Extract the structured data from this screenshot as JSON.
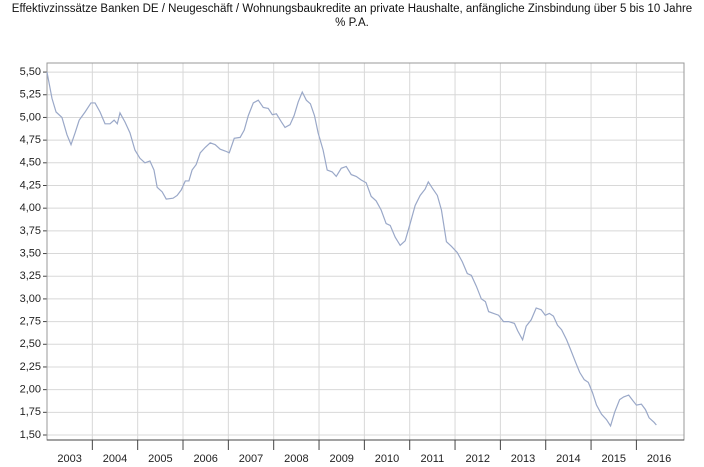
{
  "chart_data": {
    "type": "line",
    "title": "Effektivzinssätze Banken DE / Neugeschäft / Wohnungsbaukredite an private Haushalte, anfängliche Zinsbindung über 5 bis 10 Jahre",
    "subtitle": "% P.A.",
    "x": [
      2003.0,
      2003.11,
      2003.2,
      2003.33,
      2003.44,
      2003.53,
      2003.62,
      2003.71,
      2003.84,
      2003.97,
      2004.06,
      2004.17,
      2004.28,
      2004.39,
      2004.48,
      2004.55,
      2004.61,
      2004.72,
      2004.83,
      2004.94,
      2005.05,
      2005.16,
      2005.27,
      2005.36,
      2005.43,
      2005.54,
      2005.63,
      2005.78,
      2005.87,
      2005.96,
      2006.05,
      2006.13,
      2006.2,
      2006.29,
      2006.38,
      2006.49,
      2006.6,
      2006.71,
      2006.82,
      2006.93,
      2007.02,
      2007.13,
      2007.26,
      2007.35,
      2007.44,
      2007.55,
      2007.66,
      2007.77,
      2007.88,
      2007.97,
      2008.06,
      2008.17,
      2008.25,
      2008.36,
      2008.45,
      2008.54,
      2008.63,
      2008.72,
      2008.81,
      2008.9,
      2008.98,
      2009.09,
      2009.18,
      2009.29,
      2009.38,
      2009.49,
      2009.6,
      2009.71,
      2009.82,
      2009.93,
      2010.04,
      2010.15,
      2010.26,
      2010.37,
      2010.48,
      2010.57,
      2010.68,
      2010.79,
      2010.9,
      2011.01,
      2011.12,
      2011.23,
      2011.34,
      2011.41,
      2011.5,
      2011.61,
      2011.7,
      2011.81,
      2011.92,
      2012.05,
      2012.16,
      2012.27,
      2012.36,
      2012.47,
      2012.58,
      2012.67,
      2012.74,
      2012.85,
      2012.96,
      2013.07,
      2013.18,
      2013.31,
      2013.38,
      2013.49,
      2013.57,
      2013.68,
      2013.79,
      2013.9,
      2013.99,
      2014.08,
      2014.17,
      2014.26,
      2014.35,
      2014.46,
      2014.55,
      2014.66,
      2014.75,
      2014.85,
      2014.94,
      2015.03,
      2015.12,
      2015.23,
      2015.34,
      2015.43,
      2015.52,
      2015.63,
      2015.72,
      2015.83,
      2015.92,
      2016.0,
      2016.11,
      2016.2,
      2016.28,
      2016.39,
      2016.44
    ],
    "series": [
      {
        "color": "#9aa8c8",
        "values": [
          5.5,
          5.21,
          5.06,
          5.0,
          4.81,
          4.7,
          4.83,
          4.97,
          5.06,
          5.16,
          5.16,
          5.06,
          4.93,
          4.93,
          4.97,
          4.93,
          5.05,
          4.95,
          4.83,
          4.64,
          4.55,
          4.5,
          4.52,
          4.42,
          4.23,
          4.18,
          4.1,
          4.11,
          4.14,
          4.2,
          4.3,
          4.3,
          4.42,
          4.48,
          4.61,
          4.67,
          4.72,
          4.7,
          4.65,
          4.63,
          4.61,
          4.77,
          4.78,
          4.86,
          5.02,
          5.16,
          5.19,
          5.11,
          5.1,
          5.03,
          5.04,
          4.95,
          4.89,
          4.92,
          5.02,
          5.17,
          5.28,
          5.19,
          5.15,
          5.02,
          4.83,
          4.64,
          4.42,
          4.4,
          4.35,
          4.44,
          4.46,
          4.37,
          4.35,
          4.31,
          4.28,
          4.13,
          4.08,
          3.98,
          3.83,
          3.81,
          3.68,
          3.59,
          3.64,
          3.83,
          4.03,
          4.14,
          4.21,
          4.29,
          4.22,
          4.14,
          3.98,
          3.63,
          3.58,
          3.51,
          3.41,
          3.28,
          3.26,
          3.14,
          3.0,
          2.97,
          2.86,
          2.84,
          2.82,
          2.75,
          2.75,
          2.73,
          2.65,
          2.55,
          2.7,
          2.77,
          2.9,
          2.88,
          2.82,
          2.84,
          2.81,
          2.71,
          2.66,
          2.55,
          2.44,
          2.3,
          2.19,
          2.11,
          2.08,
          1.97,
          1.83,
          1.73,
          1.67,
          1.6,
          1.75,
          1.89,
          1.92,
          1.94,
          1.88,
          1.83,
          1.84,
          1.78,
          1.69,
          1.64,
          1.61
        ]
      }
    ],
    "xlim": [
      2003,
      2017.05
    ],
    "xticks": [
      {
        "value": 2003.5,
        "label": "2003"
      },
      {
        "value": 2004.5,
        "label": "2004"
      },
      {
        "value": 2005.5,
        "label": "2005"
      },
      {
        "value": 2006.5,
        "label": "2006"
      },
      {
        "value": 2007.5,
        "label": "2007"
      },
      {
        "value": 2008.5,
        "label": "2008"
      },
      {
        "value": 2009.5,
        "label": "2009"
      },
      {
        "value": 2010.5,
        "label": "2010"
      },
      {
        "value": 2011.5,
        "label": "2011"
      },
      {
        "value": 2012.5,
        "label": "2012"
      },
      {
        "value": 2013.5,
        "label": "2013"
      },
      {
        "value": 2014.5,
        "label": "2014"
      },
      {
        "value": 2015.5,
        "label": "2015"
      },
      {
        "value": 2016.5,
        "label": "2016"
      }
    ],
    "xgrid": [
      2004,
      2005,
      2006,
      2007,
      2008,
      2009,
      2010,
      2011,
      2012,
      2013,
      2014,
      2015,
      2016
    ],
    "ylim": [
      1.445,
      5.6
    ],
    "yticks": [
      {
        "value": 1.5,
        "label": "1,50"
      },
      {
        "value": 1.75,
        "label": "1,75"
      },
      {
        "value": 2.0,
        "label": "2,00"
      },
      {
        "value": 2.25,
        "label": "2,25"
      },
      {
        "value": 2.5,
        "label": "2,50"
      },
      {
        "value": 2.75,
        "label": "2,75"
      },
      {
        "value": 3.0,
        "label": "3,00"
      },
      {
        "value": 3.25,
        "label": "3,25"
      },
      {
        "value": 3.5,
        "label": "3,50"
      },
      {
        "value": 3.75,
        "label": "3,75"
      },
      {
        "value": 4.0,
        "label": "4,00"
      },
      {
        "value": 4.25,
        "label": "4,25"
      },
      {
        "value": 4.5,
        "label": "4,50"
      },
      {
        "value": 4.75,
        "label": "4,75"
      },
      {
        "value": 5.0,
        "label": "5,00"
      },
      {
        "value": 5.25,
        "label": "5,25"
      },
      {
        "value": 5.5,
        "label": "5,50"
      }
    ],
    "grid": true
  }
}
